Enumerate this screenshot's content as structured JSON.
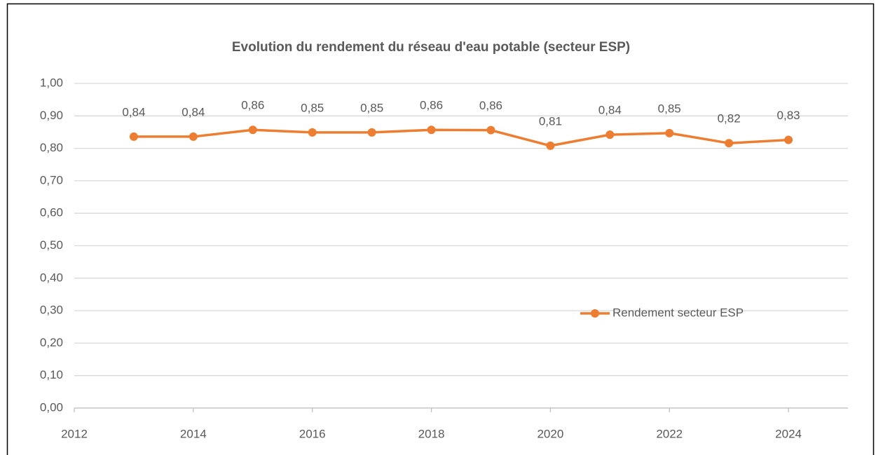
{
  "chart_data": {
    "type": "line",
    "title": "Evolution du rendement du réseau d'eau potable (secteur ESP)",
    "x": [
      2013,
      2014,
      2015,
      2016,
      2017,
      2018,
      2019,
      2020,
      2021,
      2022,
      2023,
      2024
    ],
    "series": [
      {
        "name": "Rendement secteur ESP",
        "color": "#ed7d31",
        "values": [
          0.836,
          0.836,
          0.857,
          0.849,
          0.849,
          0.857,
          0.856,
          0.808,
          0.842,
          0.847,
          0.816,
          0.826
        ],
        "value_labels": [
          "0,84",
          "0,84",
          "0,86",
          "0,85",
          "0,85",
          "0,86",
          "0,86",
          "0,81",
          "0,84",
          "0,85",
          "0,82",
          "0,83"
        ]
      }
    ],
    "xlim": [
      2012,
      2025
    ],
    "xticks": [
      2012,
      2014,
      2016,
      2018,
      2020,
      2022,
      2024
    ],
    "ylim": [
      0,
      1
    ],
    "yticks": [
      {
        "value": 0,
        "label": "0,00"
      },
      {
        "value": 0.1,
        "label": "0,10"
      },
      {
        "value": 0.2,
        "label": "0,20"
      },
      {
        "value": 0.3,
        "label": "0,30"
      },
      {
        "value": 0.4,
        "label": "0,40"
      },
      {
        "value": 0.5,
        "label": "0,50"
      },
      {
        "value": 0.6,
        "label": "0,60"
      },
      {
        "value": 0.7,
        "label": "0,70"
      },
      {
        "value": 0.8,
        "label": "0,80"
      },
      {
        "value": 0.9,
        "label": "0,90"
      },
      {
        "value": 1,
        "label": "1,00"
      }
    ],
    "grid": true,
    "legend": "right"
  }
}
